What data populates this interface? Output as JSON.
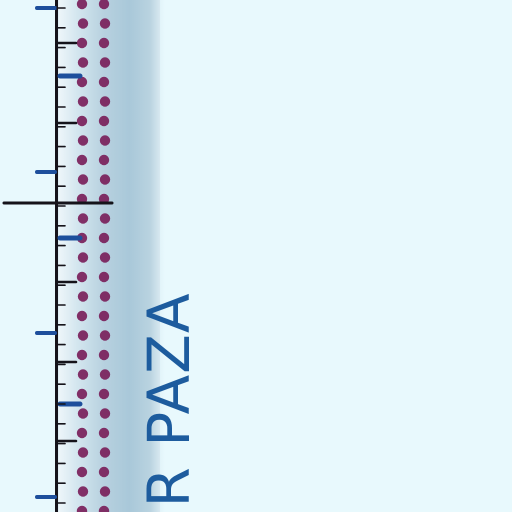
{
  "label": {
    "text": "R PAZA"
  },
  "colors": {
    "background": "#e8f9fd",
    "strip": "#b7d1df",
    "dot": "#7a1f5a",
    "blue_tick": "#1d4f9c",
    "black_tick": "#15131a",
    "label": "#1d5c9e"
  }
}
